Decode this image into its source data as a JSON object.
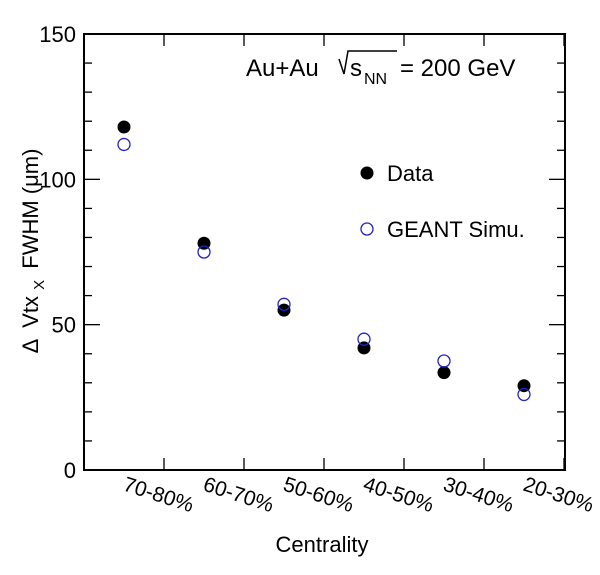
{
  "chart_data": {
    "type": "scatter",
    "title": "",
    "annotation": {
      "system": "Au+Au",
      "energy_sub": "NN",
      "energy_value": "= 200 GeV"
    },
    "xlabel": "Centrality",
    "ylabel": {
      "delta": "Δ",
      "main": "Vtx",
      "sub": "X",
      "rest": "FWHM (μm)"
    },
    "categories": [
      "70-80%",
      "60-70%",
      "50-60%",
      "40-50%",
      "30-40%",
      "20-30%"
    ],
    "ylim": [
      0,
      150
    ],
    "yticks": [
      0,
      50,
      100,
      150
    ],
    "grid": false,
    "legend_position": "upper-right",
    "series": [
      {
        "name": "Data",
        "marker": "filled-circle",
        "color": "#000000",
        "values": [
          118,
          78,
          55,
          42,
          33.5,
          29
        ]
      },
      {
        "name": "GEANT Simu.",
        "marker": "open-circle",
        "color": "#2222cc",
        "values": [
          112,
          75,
          57,
          45,
          37.5,
          26
        ]
      }
    ]
  }
}
